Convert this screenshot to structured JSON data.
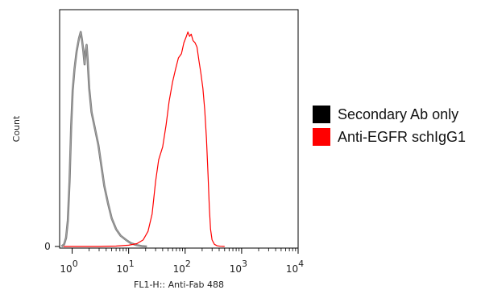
{
  "chart_data": {
    "type": "area",
    "title": "",
    "xlabel": "FL1-H:: Anti-Fab 488",
    "ylabel": "Count",
    "x_scale": "log",
    "xlim": [
      0.6,
      10000
    ],
    "y_ticks": [
      {
        "value": 0,
        "label": "0"
      }
    ],
    "x_ticks": [
      {
        "value": 1,
        "base": "10",
        "exp": "0"
      },
      {
        "value": 10,
        "base": "10",
        "exp": "1"
      },
      {
        "value": 100,
        "base": "10",
        "exp": "2"
      },
      {
        "value": 1000,
        "base": "10",
        "exp": "3"
      },
      {
        "value": 10000,
        "base": "10",
        "exp": "4"
      }
    ],
    "legend_position": "right",
    "series": [
      {
        "name": "Secondary Ab only",
        "color": "#7f7f7f",
        "legend_color": "#000000",
        "points": [
          [
            0.65,
            0
          ],
          [
            0.72,
            0.01
          ],
          [
            0.78,
            0.04
          ],
          [
            0.84,
            0.12
          ],
          [
            0.9,
            0.3
          ],
          [
            0.96,
            0.55
          ],
          [
            1.02,
            0.72
          ],
          [
            1.1,
            0.82
          ],
          [
            1.2,
            0.9
          ],
          [
            1.32,
            0.96
          ],
          [
            1.42,
            0.99
          ],
          [
            1.5,
            0.95
          ],
          [
            1.58,
            0.9
          ],
          [
            1.66,
            0.84
          ],
          [
            1.72,
            0.9
          ],
          [
            1.8,
            0.93
          ],
          [
            1.88,
            0.86
          ],
          [
            2.0,
            0.73
          ],
          [
            2.2,
            0.62
          ],
          [
            2.5,
            0.55
          ],
          [
            2.9,
            0.47
          ],
          [
            3.3,
            0.37
          ],
          [
            3.7,
            0.28
          ],
          [
            4.3,
            0.2
          ],
          [
            5.0,
            0.13
          ],
          [
            6.0,
            0.08
          ],
          [
            7.2,
            0.05
          ],
          [
            9.0,
            0.03
          ],
          [
            11,
            0.015
          ],
          [
            14,
            0.006
          ],
          [
            17,
            0.002
          ],
          [
            21,
            0
          ]
        ]
      },
      {
        "name": "Anti-EGFR schIgG1",
        "color": "#ff0000",
        "legend_color": "#ff0000",
        "points": [
          [
            0.7,
            0
          ],
          [
            3,
            0
          ],
          [
            6,
            0.002
          ],
          [
            10,
            0.006
          ],
          [
            14,
            0.013
          ],
          [
            18,
            0.03
          ],
          [
            22,
            0.07
          ],
          [
            26,
            0.15
          ],
          [
            30,
            0.3
          ],
          [
            34,
            0.4
          ],
          [
            40,
            0.46
          ],
          [
            46,
            0.56
          ],
          [
            52,
            0.67
          ],
          [
            60,
            0.76
          ],
          [
            68,
            0.82
          ],
          [
            76,
            0.87
          ],
          [
            86,
            0.89
          ],
          [
            95,
            0.94
          ],
          [
            105,
            0.97
          ],
          [
            112,
            0.99
          ],
          [
            120,
            0.97
          ],
          [
            128,
            0.98
          ],
          [
            138,
            0.95
          ],
          [
            150,
            0.94
          ],
          [
            162,
            0.92
          ],
          [
            175,
            0.86
          ],
          [
            190,
            0.8
          ],
          [
            206,
            0.73
          ],
          [
            222,
            0.63
          ],
          [
            238,
            0.5
          ],
          [
            254,
            0.33
          ],
          [
            268,
            0.18
          ],
          [
            282,
            0.08
          ],
          [
            300,
            0.03
          ],
          [
            330,
            0.01
          ],
          [
            370,
            0.003
          ],
          [
            420,
            0.001
          ],
          [
            500,
            0
          ]
        ]
      }
    ]
  },
  "legend": [
    {
      "label": "Secondary Ab only",
      "color": "#000000"
    },
    {
      "label": "Anti-EGFR schIgG1",
      "color": "#ff0000"
    }
  ]
}
